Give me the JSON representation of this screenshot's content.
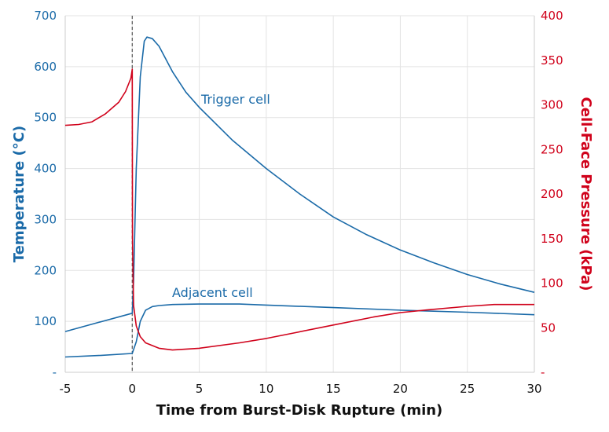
{
  "chart_data": {
    "type": "line",
    "xlabel": "Time from Burst-Disk Rupture (min)",
    "ylabel_left": "Temperature (°C)",
    "ylabel_right": "Cell-Face Pressure (kPa)",
    "xlim": [
      -5,
      30
    ],
    "ylim_left": [
      0,
      700
    ],
    "ylim_right": [
      0,
      400
    ],
    "x_ticks": [
      "-5",
      "0",
      "5",
      "10",
      "15",
      "20",
      "25",
      "30"
    ],
    "y_left_ticks": [
      "-",
      "100",
      "200",
      "300",
      "400",
      "500",
      "600",
      "700"
    ],
    "y_right_ticks": [
      "-",
      "50",
      "100",
      "150",
      "200",
      "250",
      "300",
      "350",
      "400"
    ],
    "grid": true,
    "event_line_x": 0,
    "colors": {
      "temperature": "#1a6aa8",
      "pressure": "#d0021b",
      "event": "#555555"
    },
    "series": [
      {
        "name": "Trigger cell",
        "axis": "left",
        "x": [
          -5,
          -2.5,
          0,
          0.1,
          0.3,
          0.6,
          0.9,
          1.1,
          1.5,
          2,
          3,
          4,
          5,
          7.5,
          10,
          12.5,
          15,
          17.5,
          20,
          22.5,
          25,
          27.5,
          30
        ],
        "y": [
          80,
          98,
          116,
          180,
          400,
          580,
          650,
          658,
          655,
          640,
          590,
          550,
          520,
          455,
          400,
          350,
          305,
          270,
          240,
          215,
          192,
          173,
          157
        ]
      },
      {
        "name": "Adjacent cell",
        "axis": "left",
        "x": [
          -5,
          -2.5,
          0,
          0.3,
          0.6,
          1,
          1.5,
          2,
          3,
          5,
          8,
          10,
          15,
          20,
          25,
          30
        ],
        "y": [
          30,
          33,
          37,
          60,
          100,
          122,
          129,
          131,
          133,
          134,
          134,
          132,
          127,
          122,
          118,
          113
        ]
      },
      {
        "axis": "right",
        "x": [
          -5,
          -4,
          -3,
          -2,
          -1,
          -0.5,
          -0.1,
          0,
          0.02,
          0.1,
          0.3,
          0.6,
          1,
          2,
          3,
          5,
          8,
          10,
          12,
          15,
          18,
          20,
          22,
          25,
          27,
          30
        ],
        "y": [
          277,
          278,
          281,
          290,
          303,
          315,
          330,
          340,
          150,
          75,
          52,
          40,
          33,
          27,
          25,
          27,
          33,
          38,
          44,
          53,
          62,
          67,
          70,
          74,
          76,
          76
        ]
      }
    ]
  }
}
